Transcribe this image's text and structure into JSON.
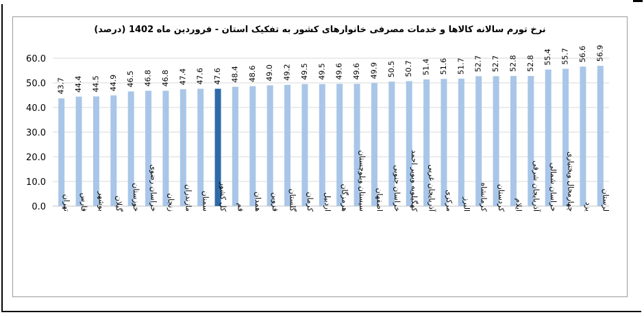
{
  "chart_data": {
    "type": "bar",
    "title": "نرخ تورم سالانه کالاها و خدمات مصرفی خانوارهای کشور به تفکیک استان - فروردین ماه 1402 (درصد)",
    "categories": [
      "تهران",
      "فارس",
      "بوشهر",
      "گیلان",
      "خوزستان",
      "خراسان رضوی",
      "زنجان",
      "مازندران",
      "سمنان",
      "کل کشور",
      "قم",
      "همدان",
      "قزوین",
      "گلستان",
      "کرمان",
      "اردبیل",
      "هرمزگان",
      "سیستان وبلوچستان",
      "اصفهان",
      "خراسان جنوبی",
      "کهگیلویه وبویر احمد",
      "آذربایجان غربی",
      "مرکزی",
      "البرز",
      "کرمانشاه",
      "کردستان",
      "ایلام",
      "آذربایجان شرقی",
      "خراسان شمالی",
      "چهارمحال وبختیاری",
      "یزد",
      "لرستان"
    ],
    "values": [
      43.7,
      44.4,
      44.5,
      44.9,
      46.5,
      46.8,
      46.8,
      47.4,
      47.6,
      47.6,
      48.4,
      48.6,
      49.0,
      49.2,
      49.5,
      49.5,
      49.6,
      49.6,
      49.9,
      50.5,
      50.7,
      51.4,
      51.6,
      51.7,
      52.7,
      52.7,
      52.8,
      52.8,
      55.4,
      55.7,
      56.6,
      56.9
    ],
    "value_labels": [
      "43.7",
      "44.4",
      "44.5",
      "44.9",
      "46.5",
      "46.8",
      "46.8",
      "47.4",
      "47.6",
      "47.6",
      "48.4",
      "48.6",
      "49.0",
      "49.2",
      "49.5",
      "49.5",
      "49.6",
      "49.6",
      "49.9",
      "50.5",
      "50.7",
      "51.4",
      "51.6",
      "51.7",
      "52.7",
      "52.7",
      "52.8",
      "52.8",
      "55.4",
      "55.7",
      "56.6",
      "56.9"
    ],
    "highlight_index": 9,
    "ylim": [
      0,
      60
    ],
    "yticks": [
      "0.0",
      "10.0",
      "20.0",
      "30.0",
      "40.0",
      "50.0",
      "60.0"
    ],
    "grid": true,
    "legend": "none",
    "colors": {
      "bar": "#a9c6e8",
      "highlight": "#2e6aa8",
      "grid": "#d9d9d9",
      "text": "#000000"
    }
  }
}
